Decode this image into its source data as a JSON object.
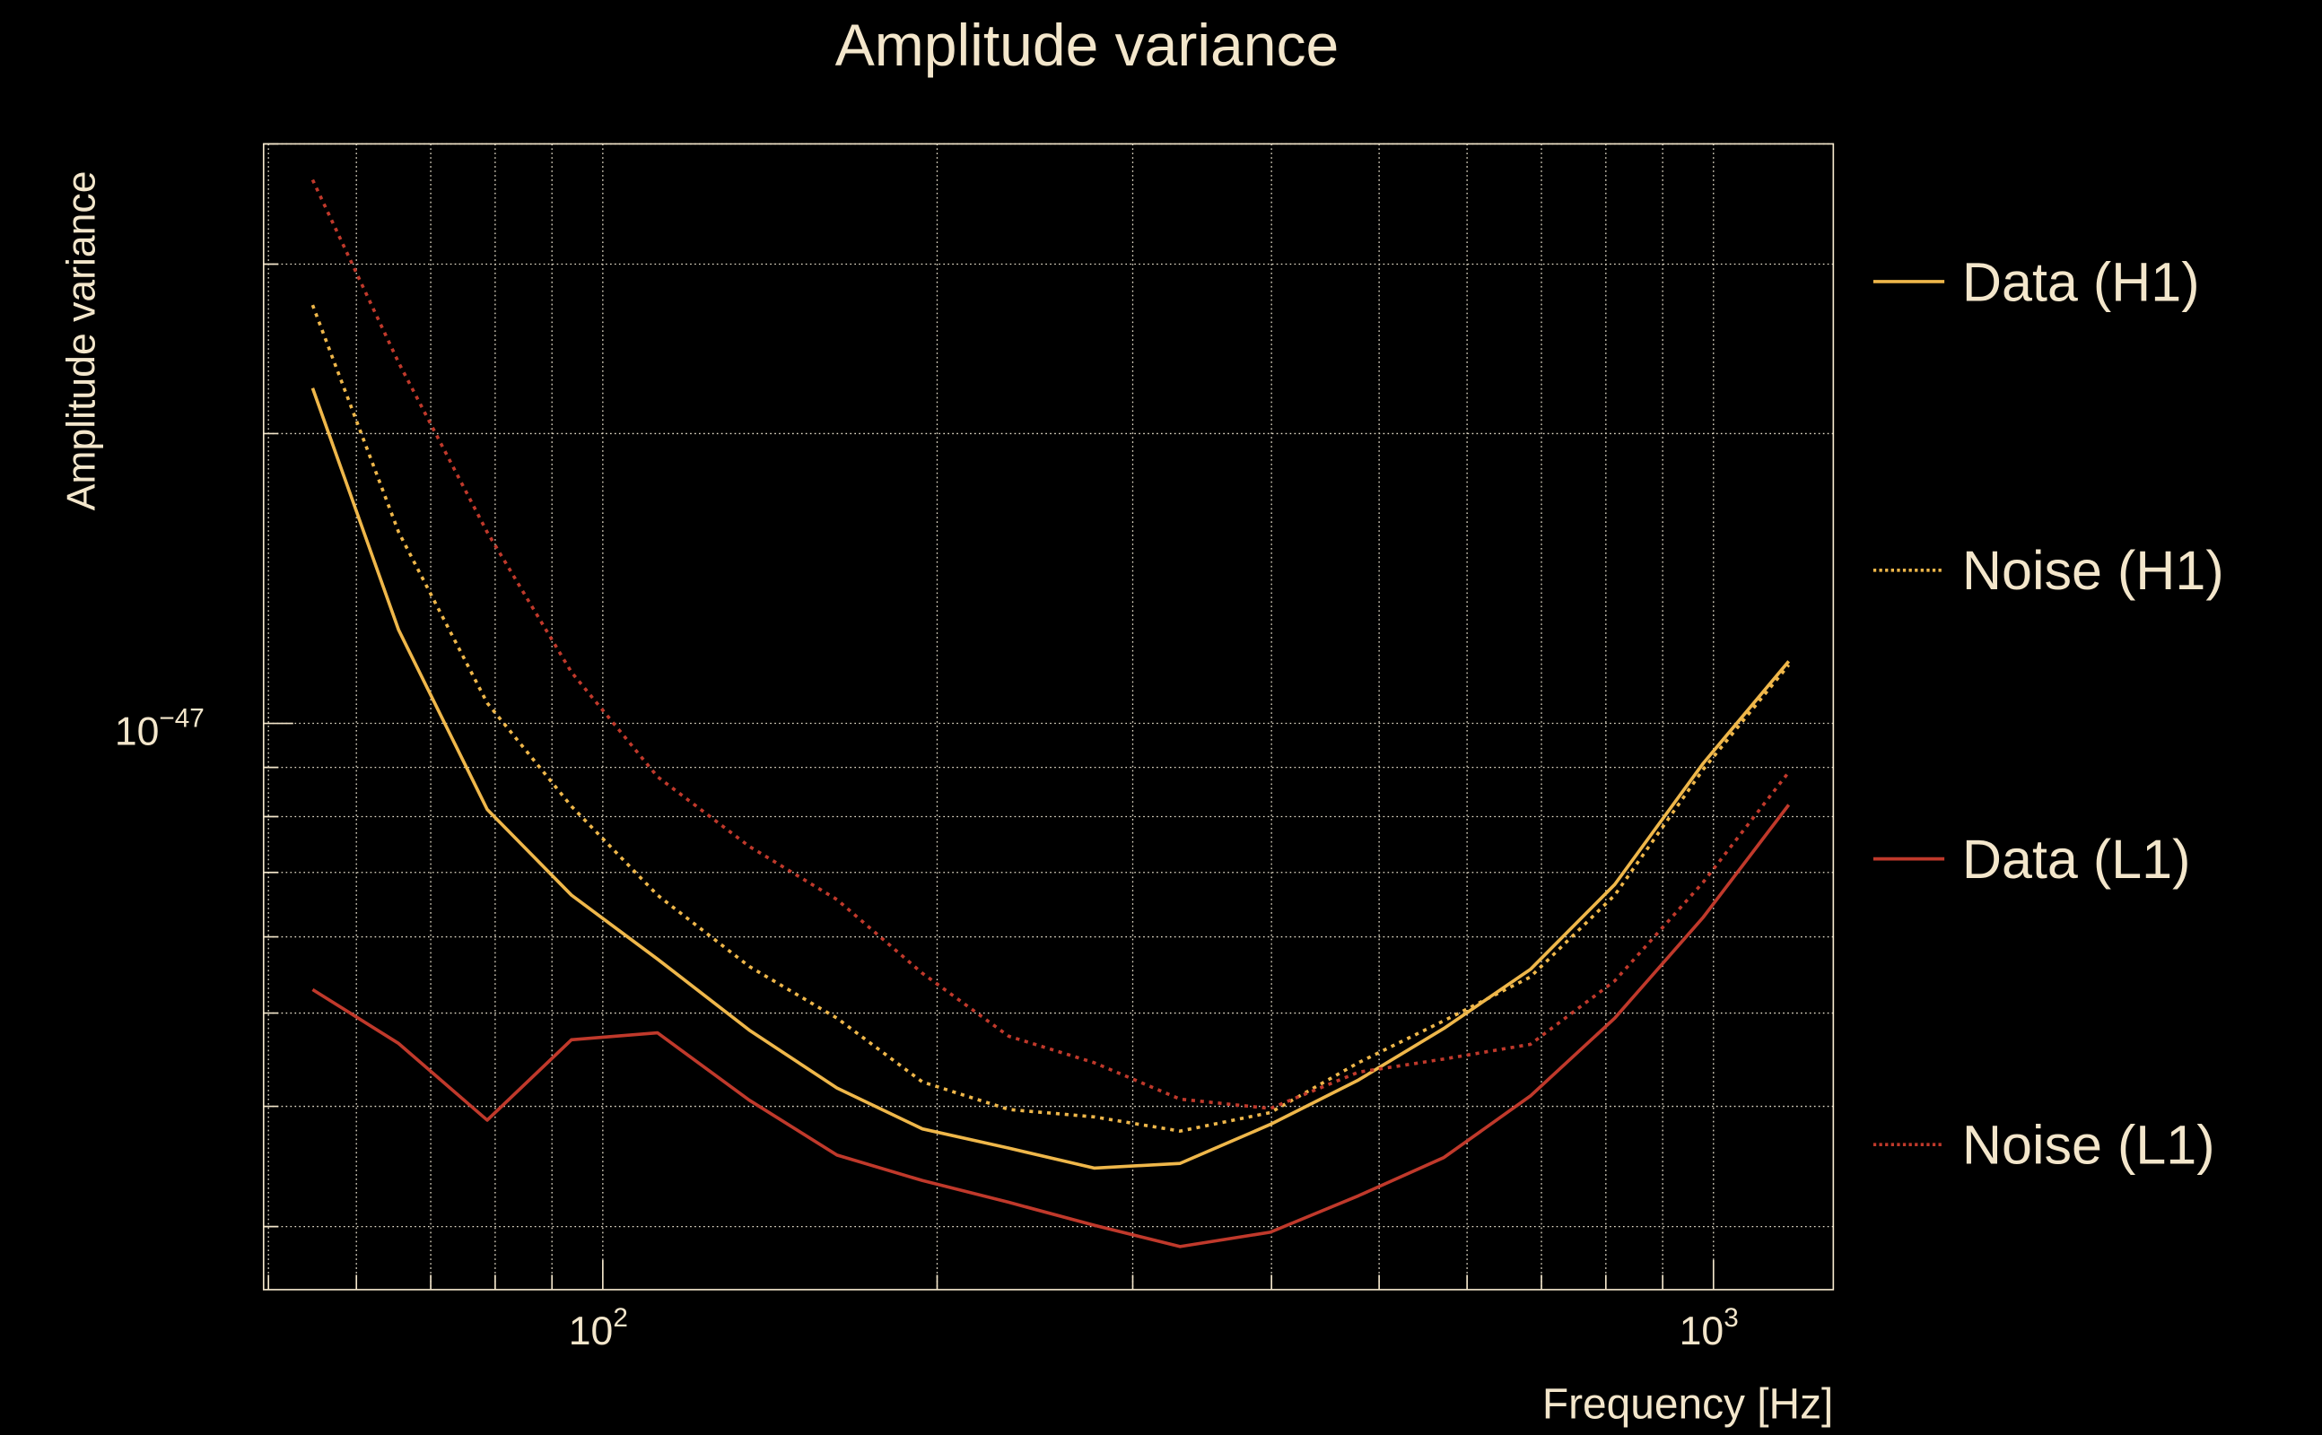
{
  "chart_data": {
    "type": "line",
    "title": "Amplitude variance",
    "xlabel": "Frequency [Hz]",
    "ylabel": "Amplitude variance",
    "xscale": "log",
    "yscale": "log",
    "xlim": [
      49.5,
      1282
    ],
    "ylim": [
      2.58e-48,
      4e-47
    ],
    "grid": true,
    "legend_position": "right",
    "x_ticks": [
      {
        "base": "10",
        "exp": "2",
        "value": 100
      },
      {
        "base": "10",
        "exp": "3",
        "value": 1000
      }
    ],
    "y_ticks": [
      {
        "base": "10",
        "exp": "−47",
        "value": 1e-47
      }
    ],
    "x": [
      54.8,
      65.5,
      78.7,
      93.7,
      112,
      135.5,
      162.5,
      194,
      232,
      277,
      331,
      399,
      479,
      572,
      684,
      815,
      979,
      1169
    ],
    "series": [
      {
        "name": "Data (H1)",
        "color": "#efb74a",
        "style": "solid",
        "values": [
          2.23e-47,
          1.25e-47,
          8.14e-48,
          6.63e-48,
          5.69e-48,
          4.8e-48,
          4.18e-48,
          3.79e-48,
          3.62e-48,
          3.45e-48,
          3.49e-48,
          3.83e-48,
          4.26e-48,
          4.82e-48,
          5.55e-48,
          6.8e-48,
          9.09e-48,
          1.16e-47
        ]
      },
      {
        "name": "Noise (H1)",
        "color": "#efb74a",
        "style": "dotted",
        "values": [
          2.72e-47,
          1.58e-47,
          1.05e-47,
          8.2e-48,
          6.63e-48,
          5.59e-48,
          4.94e-48,
          4.24e-48,
          3.97e-48,
          3.9e-48,
          3.77e-48,
          3.94e-48,
          4.44e-48,
          4.91e-48,
          5.45e-48,
          6.63e-48,
          8.96e-48,
          1.15e-47
        ]
      },
      {
        "name": "Data (L1)",
        "color": "#c0392b",
        "style": "solid",
        "values": [
          5.29e-48,
          4.65e-48,
          3.87e-48,
          4.69e-48,
          4.77e-48,
          4.06e-48,
          3.56e-48,
          3.35e-48,
          3.18e-48,
          3.01e-48,
          2.86e-48,
          2.96e-48,
          3.23e-48,
          3.54e-48,
          4.1e-48,
          4.94e-48,
          6.29e-48,
          8.23e-48
        ]
      },
      {
        "name": "Noise (L1)",
        "color": "#c0392b",
        "style": "dotted",
        "values": [
          3.67e-47,
          2.37e-47,
          1.58e-47,
          1.13e-47,
          8.8e-48,
          7.45e-48,
          6.56e-48,
          5.5e-48,
          4.73e-48,
          4.44e-48,
          4.07e-48,
          3.98e-48,
          4.34e-48,
          4.48e-48,
          4.64e-48,
          5.4e-48,
          6.84e-48,
          8.9e-48
        ]
      }
    ]
  }
}
